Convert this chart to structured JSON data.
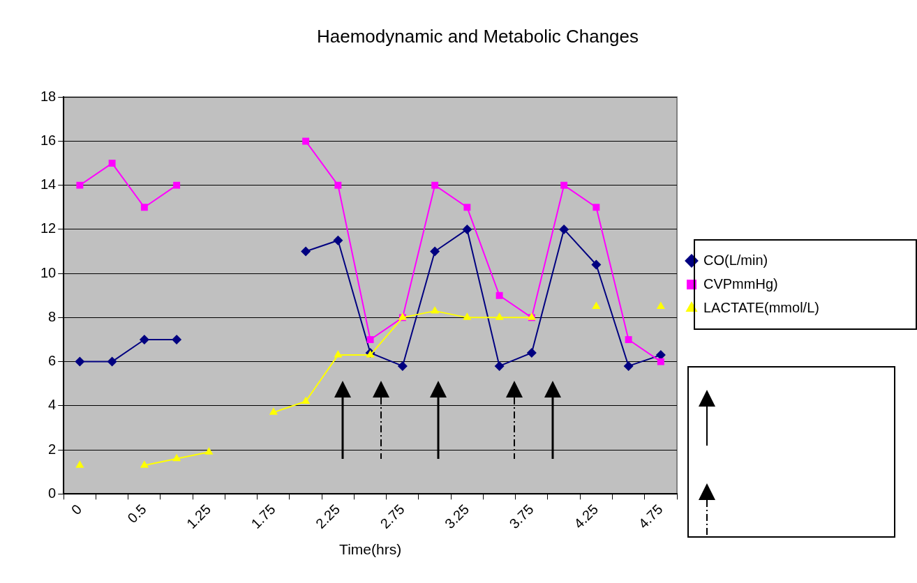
{
  "chart_data": {
    "type": "line",
    "title": "Haemodynamic and Metabolic Changes",
    "xlabel": "Time(hrs)",
    "categories": [
      "0",
      null,
      "0.5",
      null,
      "1.25",
      null,
      "1.75",
      null,
      "2.25",
      null,
      "2.75",
      null,
      "3.25",
      null,
      "3.75",
      null,
      "4.25",
      null,
      "4.75"
    ],
    "series": [
      {
        "name": "CO(L/min)",
        "color": "#000080",
        "marker": "diamond",
        "values": [
          6,
          6,
          7,
          7,
          null,
          null,
          null,
          11,
          11.5,
          6.4,
          5.8,
          11,
          12,
          5.8,
          6.4,
          12,
          10.4,
          5.8,
          6.3
        ]
      },
      {
        "name": "CVPmmHg)",
        "color": "#ff00ff",
        "marker": "square",
        "values": [
          14,
          15,
          13,
          14,
          null,
          null,
          null,
          16,
          14,
          7,
          8,
          14,
          13,
          9,
          8,
          14,
          13,
          7,
          6
        ]
      },
      {
        "name": "LACTATE(mmol/L)",
        "color": "#ffff00",
        "marker": "triangle",
        "values": [
          1.3,
          null,
          1.3,
          1.6,
          1.9,
          null,
          3.7,
          4.2,
          6.3,
          6.3,
          8,
          8.3,
          8,
          8,
          8,
          null,
          8.5,
          null,
          8.5
        ]
      }
    ],
    "ylim": [
      0,
      18
    ],
    "yticks": [
      0,
      2,
      4,
      6,
      8,
      10,
      12,
      14,
      16,
      18
    ],
    "grid": "y",
    "legend": "right",
    "line_style": "solid"
  }
}
